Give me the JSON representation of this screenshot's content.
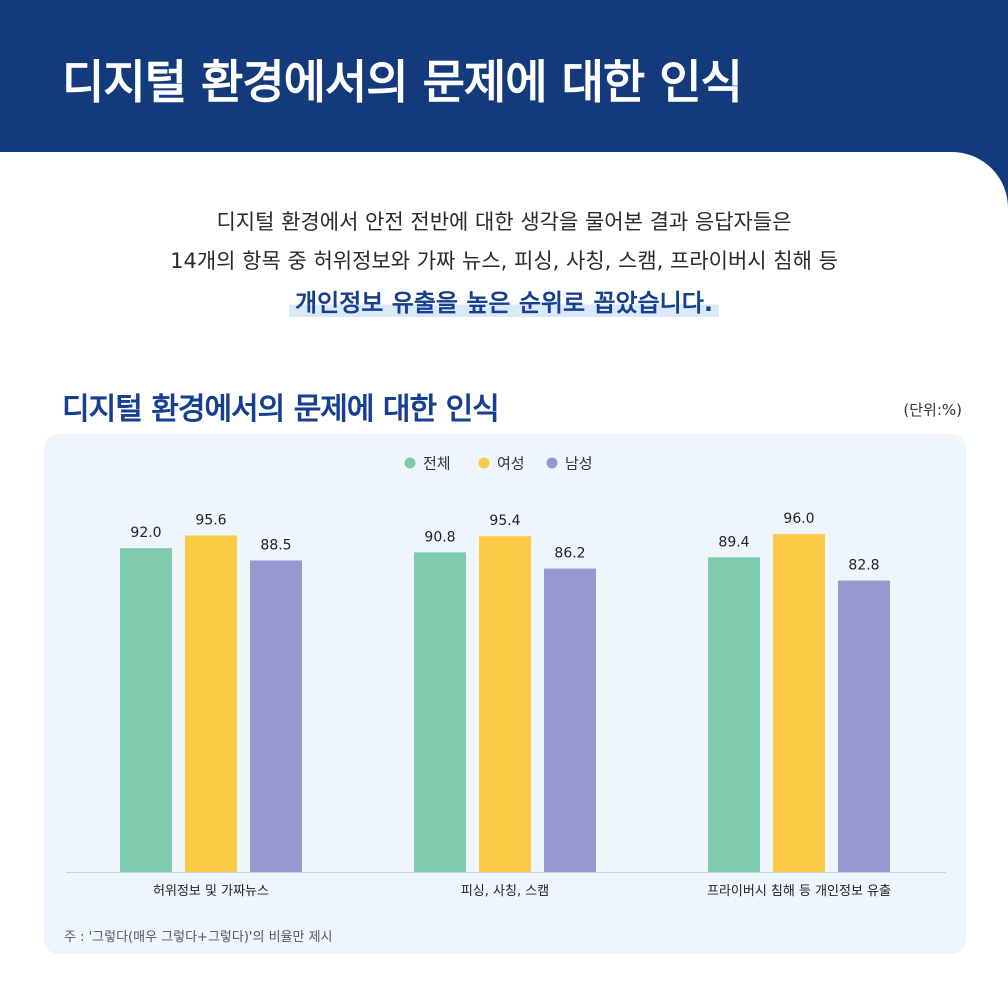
{
  "header": {
    "title": "디지털 환경에서의 문제에 대한 인식"
  },
  "intro": {
    "line1": "디지털 환경에서 안전 전반에 대한 생각을 물어본 결과 응답자들은",
    "line2": "14개의 항목 중 허위정보와 가짜 뉴스, 피싱, 사칭, 스캠, 프라이버시 침해 등",
    "highlight": "개인정보 유출을 높은 순위로 꼽았습니다."
  },
  "chart_title": "디지털 환경에서의 문제에 대한 인식",
  "unit": "(단위:%)",
  "footnote": "주 : '그렇다(매우 그렇다+그렇다)'의 비율만 제시",
  "colors": {
    "banner": "#133a7a",
    "accent_text": "#173f8f",
    "total": "#7ecbad",
    "female": "#fbcb48",
    "male": "#9699cf",
    "panel": "#eef5fd"
  },
  "chart_data": {
    "type": "bar",
    "title": "디지털 환경에서의 문제에 대한 인식",
    "xlabel": "",
    "ylabel": "",
    "unit": "%",
    "ylim": [
      0,
      100
    ],
    "grid": false,
    "legend_position": "top-center",
    "categories": [
      "허위정보 및 가짜뉴스",
      "피싱, 사칭, 스캠",
      "프라이버시 침해 등 개인정보 유출"
    ],
    "series": [
      {
        "name": "전체",
        "color": "#7ecbad",
        "values": [
          92.0,
          90.8,
          89.4
        ]
      },
      {
        "name": "여성",
        "color": "#fbcb48",
        "values": [
          95.6,
          95.4,
          96.0
        ]
      },
      {
        "name": "남성",
        "color": "#9699cf",
        "values": [
          88.5,
          86.2,
          82.8
        ]
      }
    ]
  }
}
